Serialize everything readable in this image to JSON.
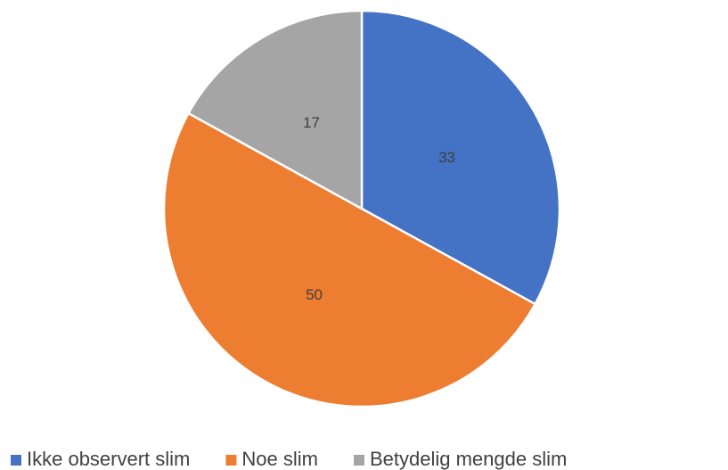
{
  "chart_data": {
    "type": "pie",
    "categories": [
      "Ikke observert slim",
      "Noe slim",
      "Betydelig mengde slim"
    ],
    "values": [
      33,
      50,
      17
    ],
    "colors": [
      "#4472c4",
      "#ed7d31",
      "#a5a5a5"
    ],
    "legend": "bottom"
  }
}
